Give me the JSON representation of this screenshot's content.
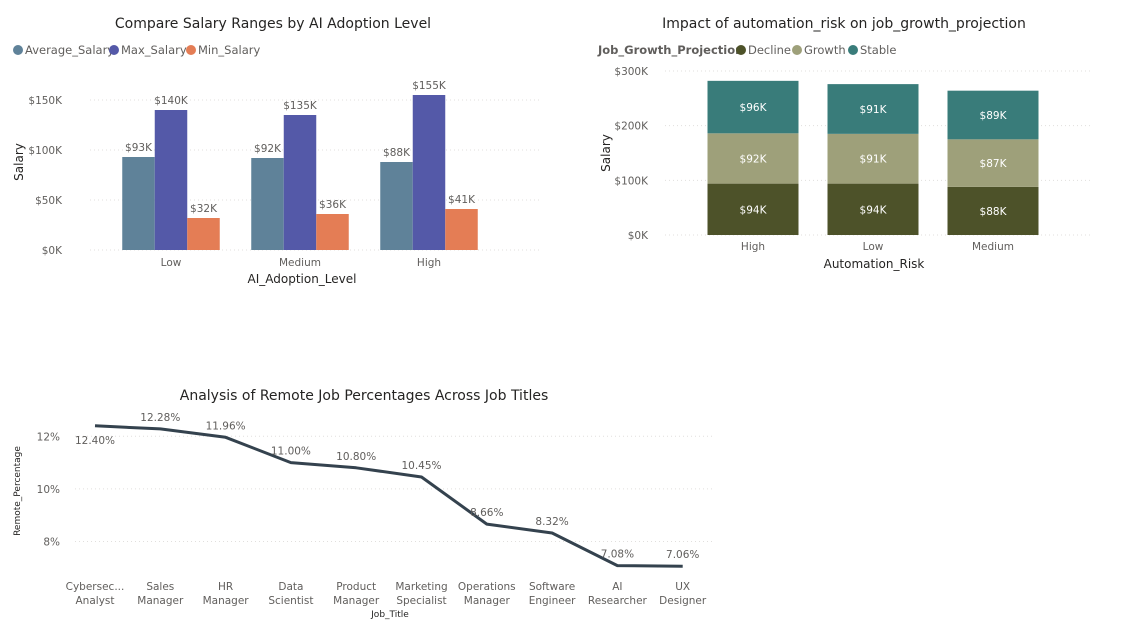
{
  "colors": {
    "Average_Salary": "#5f8299",
    "Max_Salary": "#5459a8",
    "Min_Salary": "#e47d55",
    "Decline": "#4d5229",
    "Growth": "#9ea07a",
    "Stable": "#397c7a",
    "line": "#34424e"
  },
  "chart_data": [
    {
      "type": "bar",
      "title": "Compare Salary Ranges by AI Adoption Level",
      "xlabel": "AI_Adoption_Level",
      "ylabel": "Salary",
      "categories": [
        "Low",
        "Medium",
        "High"
      ],
      "series": [
        {
          "name": "Average_Salary",
          "values": [
            93,
            92,
            88
          ],
          "labels": [
            "$93K",
            "$92K",
            "$88K"
          ]
        },
        {
          "name": "Max_Salary",
          "values": [
            140,
            135,
            155
          ],
          "labels": [
            "$140K",
            "$135K",
            "$155K"
          ]
        },
        {
          "name": "Min_Salary",
          "values": [
            32,
            36,
            41
          ],
          "labels": [
            "$32K",
            "$36K",
            "$41K"
          ]
        }
      ],
      "yticks": [
        0,
        50,
        100,
        150
      ],
      "ytick_labels": [
        "$0K",
        "$50K",
        "$100K",
        "$150K"
      ],
      "ylim": [
        0,
        170
      ],
      "legend": "top-left",
      "grid": true
    },
    {
      "type": "bar",
      "stacked": true,
      "title": "Impact of automation_risk on job_growth_projection",
      "xlabel": "Automation_Risk",
      "ylabel": "Salary",
      "legend_title": "Job_Growth_Projection",
      "categories": [
        "High",
        "Low",
        "Medium"
      ],
      "series": [
        {
          "name": "Decline",
          "values": [
            94,
            94,
            88
          ],
          "labels": [
            "$94K",
            "$94K",
            "$88K"
          ]
        },
        {
          "name": "Growth",
          "values": [
            92,
            91,
            87
          ],
          "labels": [
            "$92K",
            "$91K",
            "$87K"
          ]
        },
        {
          "name": "Stable",
          "values": [
            96,
            91,
            89
          ],
          "labels": [
            "$96K",
            "$91K",
            "$89K"
          ]
        }
      ],
      "yticks": [
        0,
        100,
        200,
        300
      ],
      "ytick_labels": [
        "$0K",
        "$100K",
        "$200K",
        "$300K"
      ],
      "ylim": [
        0,
        300
      ],
      "legend": "top-left",
      "grid": true
    },
    {
      "type": "line",
      "title": "Analysis of Remote Job Percentages Across Job Titles",
      "xlabel": "Job_Title",
      "ylabel": "Remote_Percentage",
      "categories": [
        [
          "Cybersec...",
          "Analyst"
        ],
        [
          "Sales",
          "Manager"
        ],
        [
          "HR",
          "Manager"
        ],
        [
          "Data",
          "Scientist"
        ],
        [
          "Product",
          "Manager"
        ],
        [
          "Marketing",
          "Specialist"
        ],
        [
          "Operations",
          "Manager"
        ],
        [
          "Software",
          "Engineer"
        ],
        [
          "AI",
          "Researcher"
        ],
        [
          "UX",
          "Designer"
        ]
      ],
      "values": [
        12.4,
        12.28,
        11.96,
        11.0,
        10.8,
        10.45,
        8.66,
        8.32,
        7.08,
        7.06
      ],
      "labels": [
        "12.40%",
        "12.28%",
        "11.96%",
        "11.00%",
        "10.80%",
        "10.45%",
        "8.66%",
        "8.32%",
        "7.08%",
        "7.06%"
      ],
      "yticks": [
        8,
        10,
        12
      ],
      "ytick_labels": [
        "8%",
        "10%",
        "12%"
      ],
      "ylim": [
        6.8,
        13.0
      ],
      "grid": true
    }
  ]
}
